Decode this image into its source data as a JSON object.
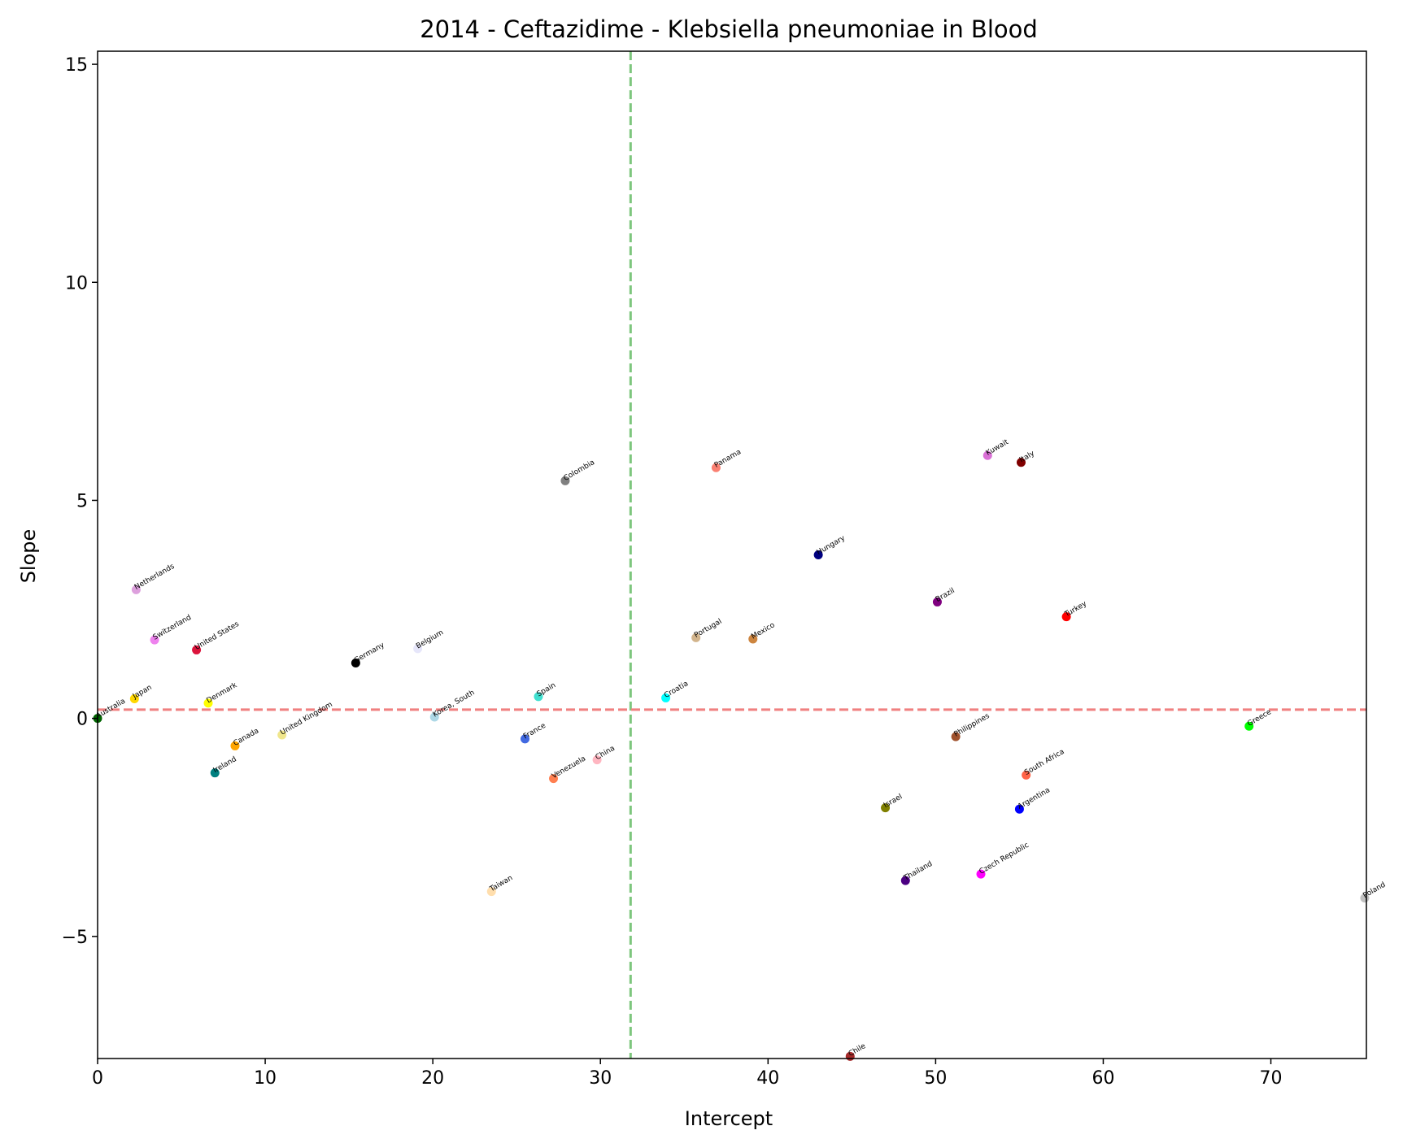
{
  "chart_data": {
    "type": "scatter",
    "title": "2014 - Ceftazidime - Klebsiella pneumoniae in Blood",
    "xlabel": "Intercept",
    "ylabel": "Slope",
    "xlim": [
      0,
      75.7
    ],
    "ylim": [
      -7.8,
      15.3
    ],
    "xticks": [
      0,
      10,
      20,
      30,
      40,
      50,
      60,
      70
    ],
    "yticks": [
      -5,
      0,
      5,
      10,
      15
    ],
    "xtick_labels": [
      "0",
      "10",
      "20",
      "30",
      "40",
      "50",
      "60",
      "70"
    ],
    "ytick_labels": [
      "−5",
      "0",
      "5",
      "10",
      "15"
    ],
    "reference_lines": {
      "vertical": {
        "x": 31.8,
        "color": "#7dc67d"
      },
      "horizontal": {
        "y": 0.2,
        "color": "#f08080"
      }
    },
    "grid": false,
    "points": [
      {
        "label": "Australia",
        "x": 0.0,
        "y": 0.0,
        "color": "#006400"
      },
      {
        "label": "Japan",
        "x": 2.2,
        "y": 0.45,
        "color": "#ffd700"
      },
      {
        "label": "Netherlands",
        "x": 2.3,
        "y": 2.95,
        "color": "#dda0dd"
      },
      {
        "label": "Switzerland",
        "x": 3.4,
        "y": 1.8,
        "color": "#ee82ee"
      },
      {
        "label": "United States",
        "x": 5.9,
        "y": 1.57,
        "color": "#dc143c"
      },
      {
        "label": "Denmark",
        "x": 6.6,
        "y": 0.35,
        "color": "#ffff00"
      },
      {
        "label": "Ireland",
        "x": 7.0,
        "y": -1.25,
        "color": "#008080"
      },
      {
        "label": "Canada",
        "x": 8.2,
        "y": -0.63,
        "color": "#ffa500"
      },
      {
        "label": "United Kingdom",
        "x": 11.0,
        "y": -0.38,
        "color": "#f0e68c"
      },
      {
        "label": "Germany",
        "x": 15.4,
        "y": 1.27,
        "color": "#000000"
      },
      {
        "label": "Belgium",
        "x": 19.1,
        "y": 1.6,
        "color": "#e6e6fa"
      },
      {
        "label": "Korea, South",
        "x": 20.1,
        "y": 0.03,
        "color": "#add8e6"
      },
      {
        "label": "Taiwan",
        "x": 23.5,
        "y": -3.97,
        "color": "#ffdead"
      },
      {
        "label": "France",
        "x": 25.5,
        "y": -0.47,
        "color": "#4169e1"
      },
      {
        "label": "Spain",
        "x": 26.3,
        "y": 0.5,
        "color": "#40e0d0"
      },
      {
        "label": "Venezuela",
        "x": 27.2,
        "y": -1.38,
        "color": "#ff7f50"
      },
      {
        "label": "Colombia",
        "x": 27.9,
        "y": 5.45,
        "color": "#808080"
      },
      {
        "label": "China",
        "x": 29.8,
        "y": -0.95,
        "color": "#ffb6c1"
      },
      {
        "label": "Croatia",
        "x": 33.9,
        "y": 0.47,
        "color": "#00ffff"
      },
      {
        "label": "Portugal",
        "x": 35.7,
        "y": 1.85,
        "color": "#d2b48c"
      },
      {
        "label": "Panama",
        "x": 36.9,
        "y": 5.75,
        "color": "#fa8072"
      },
      {
        "label": "Mexico",
        "x": 39.1,
        "y": 1.82,
        "color": "#cd853f"
      },
      {
        "label": "Hungary",
        "x": 43.0,
        "y": 3.75,
        "color": "#000080"
      },
      {
        "label": "Chile",
        "x": 44.9,
        "y": -7.75,
        "color": "#a52a2a"
      },
      {
        "label": "Israel",
        "x": 47.0,
        "y": -2.05,
        "color": "#808000"
      },
      {
        "label": "Thailand",
        "x": 48.2,
        "y": -3.72,
        "color": "#4b0082"
      },
      {
        "label": "Brazil",
        "x": 50.1,
        "y": 2.67,
        "color": "#800080"
      },
      {
        "label": "Philippines",
        "x": 51.2,
        "y": -0.42,
        "color": "#a0522d"
      },
      {
        "label": "Czech Republic",
        "x": 52.7,
        "y": -3.57,
        "color": "#ff00ff"
      },
      {
        "label": "Kuwait",
        "x": 53.1,
        "y": 6.03,
        "color": "#da70d6"
      },
      {
        "label": "Argentina",
        "x": 55.0,
        "y": -2.08,
        "color": "#0000ff"
      },
      {
        "label": "Italy",
        "x": 55.1,
        "y": 5.87,
        "color": "#800000"
      },
      {
        "label": "South Africa",
        "x": 55.4,
        "y": -1.3,
        "color": "#ff6347"
      },
      {
        "label": "Turkey",
        "x": 57.8,
        "y": 2.33,
        "color": "#ff0000"
      },
      {
        "label": "Greece",
        "x": 68.7,
        "y": -0.18,
        "color": "#00ff00"
      },
      {
        "label": "Poland",
        "x": 75.6,
        "y": -4.12,
        "color": "#c0c0c0"
      }
    ]
  }
}
